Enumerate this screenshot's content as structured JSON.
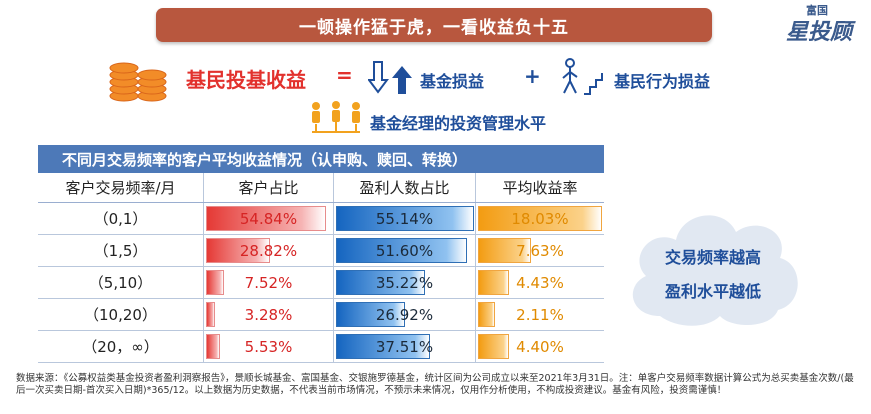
{
  "banner_title": "一顿操作猛于虎，一看收益负十五",
  "logo": {
    "small": "富国",
    "big": "星投顾"
  },
  "equation": {
    "left": "基民投基收益",
    "equals": "=",
    "term1": "基金损益",
    "plus": "+",
    "term2": "基民行为损益",
    "term3": "基金经理的投资管理水平"
  },
  "table": {
    "title": "不同月交易频率的客户平均收益情况（认申购、赎回、转换）",
    "headers": [
      "客户交易频率/月",
      "客户占比",
      "盈利人数占比",
      "平均收益率"
    ],
    "rows": [
      {
        "freq": "（0,1）",
        "share": "54.84%",
        "profit_ratio": "55.14%",
        "avg_return": "18.03%"
      },
      {
        "freq": "（1,5）",
        "share": "28.82%",
        "profit_ratio": "51.60%",
        "avg_return": "7.63%"
      },
      {
        "freq": "（5,10）",
        "share": "7.52%",
        "profit_ratio": "35.22%",
        "avg_return": "4.43%"
      },
      {
        "freq": "（10,20）",
        "share": "3.28%",
        "profit_ratio": "26.92%",
        "avg_return": "2.11%"
      },
      {
        "freq": "（20，∞）",
        "share": "5.53%",
        "profit_ratio": "37.51%",
        "avg_return": "4.40%"
      }
    ],
    "bar_fill": {
      "share": [
        0.95,
        0.5,
        0.13,
        0.06,
        0.1
      ],
      "profit_ratio": [
        1.0,
        0.95,
        0.64,
        0.49,
        0.68
      ],
      "avg_return": [
        1.0,
        0.42,
        0.24,
        0.12,
        0.24
      ]
    }
  },
  "cloud": {
    "line1": "交易频率越高",
    "line2": "盈利水平越低"
  },
  "footnote": "数据来源：《公募权益类基金投资者盈利洞察报告》，景顺长城基金、富国基金、交银施罗德基金，统计区间为公司成立以来至2021年3月31日。注：单客户交易频率数据计算公式为总买卖基金次数/(最后一次买卖日期-首次买入日期)*365/12。以上数据为历史数据，不代表当前市场情况，不预示未来情况，仅用作分析使用，不构成投资建议。基金有风险，投资需谨慎！",
  "colors": {
    "banner": "#b8573e",
    "accent_red": "#e2312d",
    "accent_blue": "#1f4e9a",
    "table_header": "#4d79b8"
  },
  "icons": [
    "coins-icon",
    "up-down-arrows-icon",
    "walker-stairs-icon",
    "people-icon",
    "cloud-icon"
  ]
}
